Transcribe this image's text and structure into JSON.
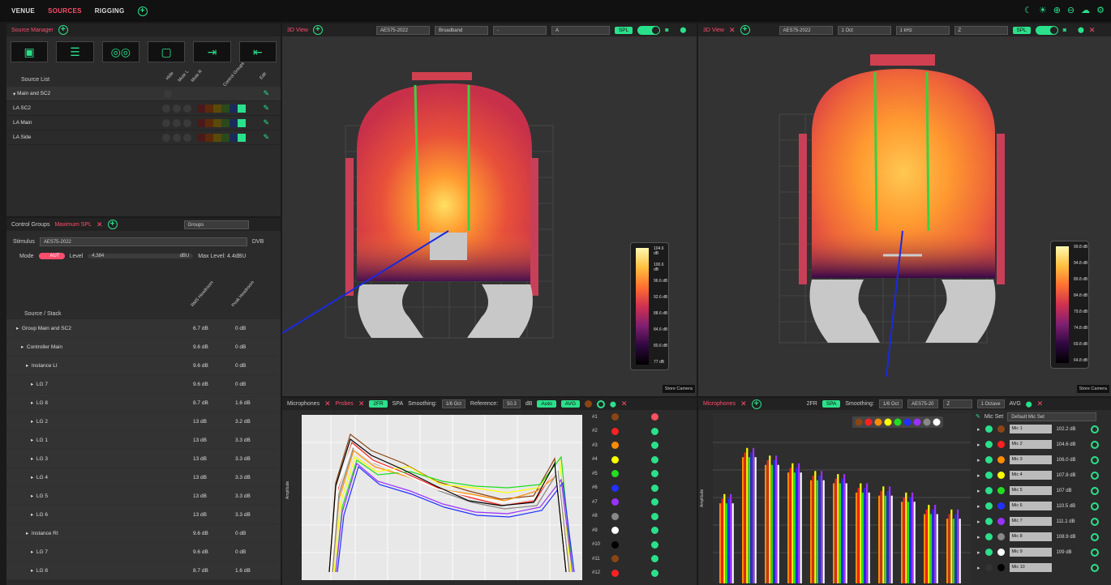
{
  "topbar": {
    "tabs": [
      "VENUE",
      "SOURCES",
      "RIGGING"
    ],
    "active_tab": "SOURCES",
    "icons": [
      "moon-icon",
      "sun-icon",
      "zoom-in-icon",
      "zoom-out-icon",
      "cloud-icon",
      "gear-icon"
    ]
  },
  "source_manager": {
    "title": "Source Manager",
    "columns": [
      "Source List",
      "Hide",
      "Mute L",
      "Mute R",
      "Control Groups",
      "Edit"
    ],
    "rows": [
      {
        "label": "Main and SC2"
      },
      {
        "label": "LA  SC2"
      },
      {
        "label": "LA  Main"
      },
      {
        "label": "LA  Side"
      }
    ]
  },
  "control_groups": {
    "tab1": "Control Groups",
    "tab2": "Maximum SPL",
    "dropdown": "Groups",
    "stimulus_label": "Stimulus",
    "stimulus_value": "AES75-2022",
    "unit": "DVB",
    "mode_label": "Mode",
    "mode_value": "AUT",
    "level_label": "Level",
    "level_value": "4.384",
    "level_unit": "dBU",
    "max_level": "Max Level: 4.4dBU",
    "col_source": "Source / Stack",
    "col_rms": "RMS Headroom",
    "col_peak": "Peak Headroom",
    "rows": [
      {
        "label": "Group Main and SC2",
        "rms": "6.7 dB",
        "peak": "0 dB",
        "indent": 1
      },
      {
        "label": "Controller Main",
        "rms": "9.6 dB",
        "peak": "0 dB",
        "indent": 2
      },
      {
        "label": "Instance LI",
        "rms": "9.6 dB",
        "peak": "0 dB",
        "indent": 3
      },
      {
        "label": "LG 7",
        "rms": "9.6 dB",
        "peak": "0 dB",
        "indent": 4
      },
      {
        "label": "LG 8",
        "rms": "8.7 dB",
        "peak": "1.6 dB",
        "indent": 4
      },
      {
        "label": "LG 2",
        "rms": "13 dB",
        "peak": "3.2 dB",
        "indent": 4
      },
      {
        "label": "LG 1",
        "rms": "13 dB",
        "peak": "3.3 dB",
        "indent": 4
      },
      {
        "label": "LG 3",
        "rms": "13 dB",
        "peak": "3.3 dB",
        "indent": 4
      },
      {
        "label": "LG 4",
        "rms": "13 dB",
        "peak": "3.3 dB",
        "indent": 4
      },
      {
        "label": "LG 5",
        "rms": "13 dB",
        "peak": "3.3 dB",
        "indent": 4
      },
      {
        "label": "LG 6",
        "rms": "13 dB",
        "peak": "3.3 dB",
        "indent": 4
      },
      {
        "label": "Instance RI",
        "rms": "9.6 dB",
        "peak": "0 dB",
        "indent": 3
      },
      {
        "label": "LG 7",
        "rms": "9.6 dB",
        "peak": "0 dB",
        "indent": 4
      },
      {
        "label": "LG 8",
        "rms": "8.7 dB",
        "peak": "1.6 dB",
        "indent": 4
      }
    ]
  },
  "view_left": {
    "title": "3D View",
    "dd1": "AES75-2022",
    "dd2": "Broadband",
    "dd3": "-",
    "dd4": "A",
    "spl": "SPL",
    "legend": [
      "104.6 dB",
      "100.6 dB",
      "96.6 dB",
      "92.6 dB",
      "88.6 dB",
      "84.6 dB",
      "80.6 dB",
      "77 dB"
    ],
    "store_camera": "Store Camera"
  },
  "view_right": {
    "title": "3D View",
    "dd1": "AES75-2022",
    "dd2": "1 Oct",
    "dd3": "1 kHz",
    "dd4": "Z",
    "spl": "SPL",
    "legend": [
      "99.8 dB",
      "94.8 dB",
      "89.8 dB",
      "84.8 dB",
      "79.8 dB",
      "74.8 dB",
      "69.8 dB",
      "64.8 dB"
    ],
    "store_camera": "Store Camera"
  },
  "mic_left": {
    "tab1": "Microphones",
    "tab2": "Probes",
    "b_2fr": "2FR",
    "b_spa": "SPA",
    "smoothing_label": "Smoothing:",
    "smoothing": "1/6 Oct",
    "reference_label": "Reference:",
    "reference": "50.3",
    "ref_unit": "dB",
    "auto": "Auto",
    "avg": "AVG",
    "ylabel": "Amplitude",
    "ids": [
      "#1",
      "#2",
      "#3",
      "#4",
      "#5",
      "#6",
      "#7",
      "#8",
      "#9",
      "#10",
      "#11",
      "#12"
    ],
    "colors": [
      "#8b4513",
      "#ff2020",
      "#ff8c00",
      "#ffff00",
      "#22dd22",
      "#2030ff",
      "#9b30ff",
      "#888888",
      "#ffffff",
      "#000000",
      "#8b4513",
      "#ff2020"
    ]
  },
  "mic_right": {
    "tab1": "Microphones",
    "b_2fr": "2FR",
    "b_spa": "SPA",
    "smoothing_label": "Smoothing:",
    "smoothing": "1/6 Oct",
    "dd_aes": "AES75-20",
    "dd_z": "Z",
    "dd_oct": "1 Octave",
    "avg": "AVG",
    "ylabel": "Amplitude",
    "mic_set_label": "Mic Set",
    "mic_set": "Default Mic Set",
    "mics": [
      {
        "name": "Mic 1",
        "val": "102.2 dB",
        "color": "#8b4513"
      },
      {
        "name": "Mic 2",
        "val": "104.6 dB",
        "color": "#ff2020"
      },
      {
        "name": "Mic 3",
        "val": "106.0 dB",
        "color": "#ff8c00"
      },
      {
        "name": "Mic 4",
        "val": "107.8 dB",
        "color": "#ffff00"
      },
      {
        "name": "Mic 5",
        "val": "107 dB",
        "color": "#22dd22"
      },
      {
        "name": "Mic 6",
        "val": "110.5 dB",
        "color": "#2030ff"
      },
      {
        "name": "Mic 7",
        "val": "111.1 dB",
        "color": "#9b30ff"
      },
      {
        "name": "Mic 8",
        "val": "108.9 dB",
        "color": "#888888"
      },
      {
        "name": "Mic 9",
        "val": "109 dB",
        "color": "#ffffff"
      },
      {
        "name": "Mic 10",
        "val": "",
        "color": "#000000"
      }
    ]
  },
  "colors": {
    "accent": "#2be08a",
    "red": "#ff4d6d"
  }
}
